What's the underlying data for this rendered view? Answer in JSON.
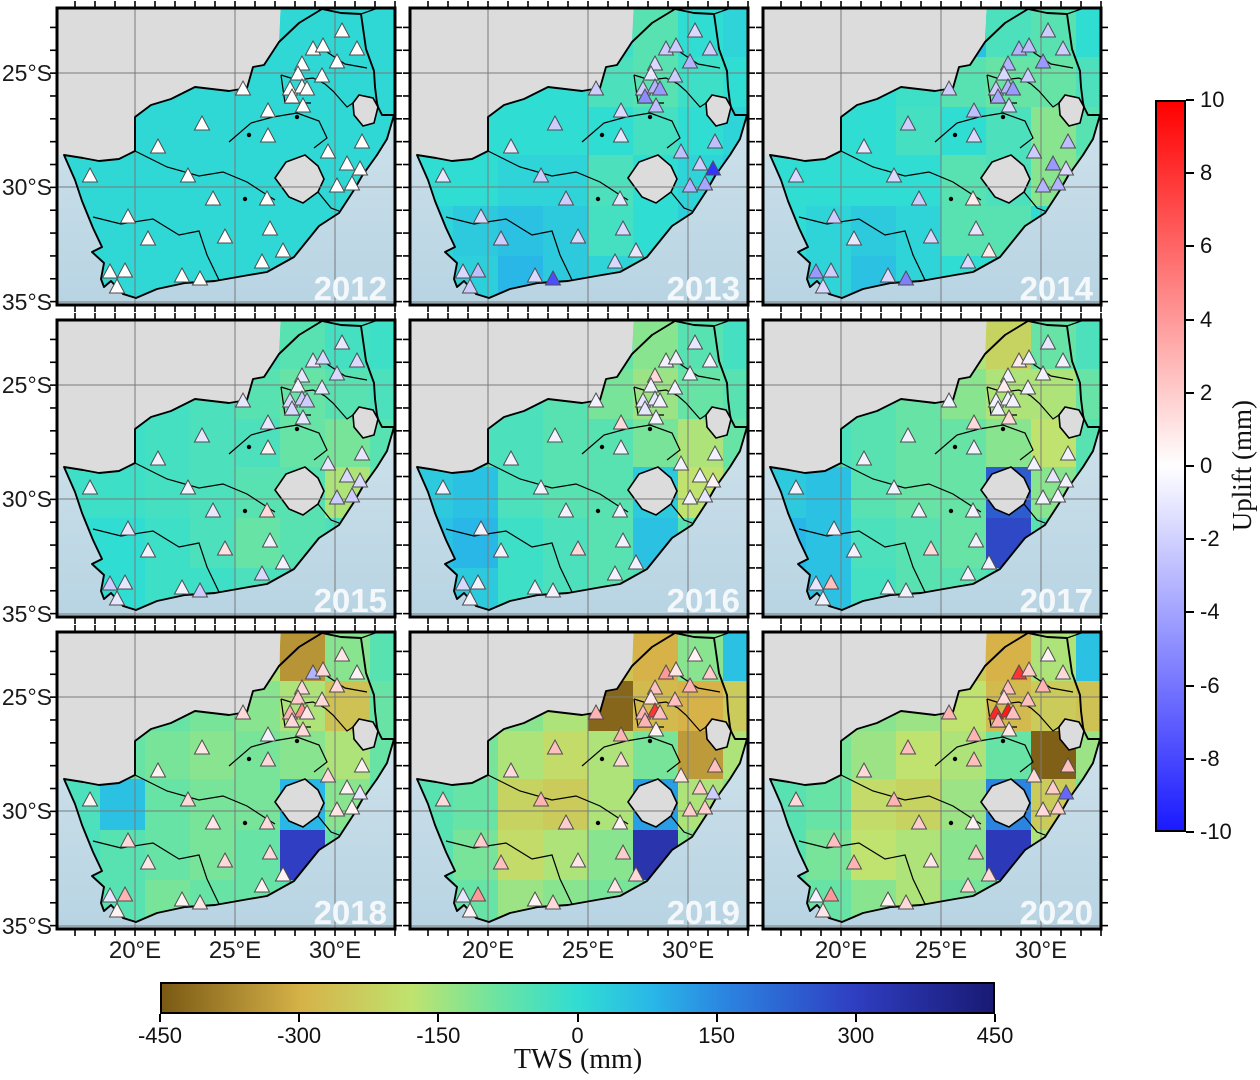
{
  "chart_data": {
    "type": "heatmap",
    "description": "3x3 grid of South Africa maps (2012-2020). Background raster = Total Water Storage anomaly (TWS, mm); triangle markers = GNSS station vertical uplift (mm).",
    "years": [
      "2012",
      "2013",
      "2014",
      "2015",
      "2016",
      "2017",
      "2018",
      "2019",
      "2020"
    ],
    "x_tick_labels": [
      "20°E",
      "25°E",
      "30°E"
    ],
    "y_tick_labels": [
      "25°S",
      "30°S",
      "35°S"
    ],
    "uplift_colorbar": {
      "label": "Uplift (mm)",
      "min": -10,
      "max": 10,
      "ticks": [
        "10",
        "8",
        "6",
        "4",
        "2",
        "0",
        "-2",
        "-4",
        "-6",
        "-8",
        "-10"
      ],
      "tick_values": [
        10,
        8,
        6,
        4,
        2,
        0,
        -2,
        -4,
        -6,
        -8,
        -10
      ],
      "color_max": "#ff0000",
      "color_mid": "#ffffff",
      "color_min": "#1a1aff"
    },
    "tws_colorbar": {
      "label": "TWS (mm)",
      "min": -450,
      "max": 450,
      "ticks": [
        "-450",
        "-300",
        "-150",
        "0",
        "150",
        "300",
        "450"
      ],
      "tick_values": [
        -450,
        -300,
        -150,
        0,
        150,
        300,
        450
      ],
      "stops": [
        [
          -450,
          "#7a5a14"
        ],
        [
          -300,
          "#d6b248"
        ],
        [
          -180,
          "#bfe36e"
        ],
        [
          -90,
          "#6ee4a0"
        ],
        [
          0,
          "#30ddd2"
        ],
        [
          80,
          "#29b7e8"
        ],
        [
          160,
          "#2b84e0"
        ],
        [
          300,
          "#2f3ec2"
        ],
        [
          450,
          "#191a74"
        ]
      ]
    },
    "map_colors": {
      "land_outside": "#dcdcdc",
      "ocean_top": "#cde1eb",
      "ocean_bottom": "#b7d3e2",
      "border": "#000000",
      "gridline": "#7a7a7a",
      "year_label": "#f5f8fa",
      "triangle_stroke": "#4d4d4d"
    },
    "stations": [
      [
        285,
        24
      ],
      [
        256,
        42
      ],
      [
        266,
        39
      ],
      [
        300,
        42
      ],
      [
        245,
        57
      ],
      [
        280,
        55
      ],
      [
        265,
        69
      ],
      [
        241,
        67
      ],
      [
        233,
        82
      ],
      [
        245,
        80
      ],
      [
        250,
        82
      ],
      [
        235,
        90
      ],
      [
        246,
        99
      ],
      [
        186,
        82
      ],
      [
        211,
        104
      ],
      [
        211,
        129
      ],
      [
        145,
        117
      ],
      [
        101,
        140
      ],
      [
        305,
        135
      ],
      [
        271,
        145
      ],
      [
        290,
        157
      ],
      [
        303,
        162
      ],
      [
        280,
        179
      ],
      [
        295,
        177
      ],
      [
        33,
        169
      ],
      [
        131,
        169
      ],
      [
        156,
        192
      ],
      [
        210,
        192
      ],
      [
        71,
        210
      ],
      [
        91,
        232
      ],
      [
        168,
        230
      ],
      [
        213,
        222
      ],
      [
        226,
        244
      ],
      [
        205,
        255
      ],
      [
        53,
        265
      ],
      [
        68,
        264
      ],
      [
        125,
        269
      ],
      [
        143,
        272
      ],
      [
        60,
        280
      ]
    ],
    "panels": [
      {
        "year": "2012",
        "tws_grid": [
          [
            10,
            10,
            10,
            10,
            10,
            10,
            10,
            10
          ],
          [
            10,
            10,
            10,
            10,
            10,
            10,
            10,
            10
          ],
          [
            10,
            10,
            10,
            10,
            10,
            10,
            10,
            10
          ],
          [
            10,
            10,
            10,
            10,
            10,
            10,
            10,
            10
          ],
          [
            10,
            10,
            10,
            10,
            10,
            10,
            10,
            10
          ],
          [
            10,
            10,
            10,
            10,
            10,
            10,
            10,
            10
          ]
        ],
        "uplift": [
          0,
          0,
          0,
          0,
          0,
          0,
          0,
          0,
          0,
          0,
          0,
          0,
          0,
          0,
          0,
          0,
          0,
          0,
          0,
          0,
          0,
          0,
          0,
          0,
          0,
          0,
          0,
          0,
          0,
          0,
          0,
          0,
          0,
          0,
          0,
          0,
          0,
          0,
          0
        ]
      },
      {
        "year": "2013",
        "tws_grid": [
          [
            0,
            0,
            0,
            0,
            -20,
            -60,
            0,
            20
          ],
          [
            0,
            0,
            0,
            0,
            -40,
            -60,
            -20,
            0
          ],
          [
            0,
            0,
            0,
            0,
            0,
            -30,
            0,
            20
          ],
          [
            0,
            0,
            20,
            20,
            -40,
            0,
            20,
            40
          ],
          [
            20,
            40,
            60,
            40,
            -30,
            0,
            30,
            0
          ],
          [
            20,
            30,
            80,
            40,
            20,
            0,
            0,
            0
          ]
        ],
        "uplift": [
          -1.5,
          -2,
          -2,
          -2,
          -1.5,
          -3,
          -2,
          -1,
          -2,
          -3,
          -4,
          -4.5,
          -2.5,
          -2,
          -1.5,
          -1,
          -2,
          -1,
          -2.5,
          -2.5,
          -2,
          -8,
          -3,
          -3.5,
          -1,
          -2,
          -2,
          -1,
          -1.5,
          -2,
          -1.5,
          -1.5,
          -1,
          -1.5,
          -1.5,
          -2.5,
          -1.5,
          -7,
          -2
        ]
      },
      {
        "year": "2014",
        "tws_grid": [
          [
            0,
            0,
            0,
            0,
            60,
            -40,
            -60,
            0
          ],
          [
            0,
            0,
            0,
            -20,
            -60,
            -80,
            -80,
            -40
          ],
          [
            0,
            0,
            0,
            -30,
            0,
            -40,
            -120,
            -60
          ],
          [
            0,
            0,
            0,
            0,
            -60,
            -40,
            -120,
            -80
          ],
          [
            0,
            20,
            40,
            20,
            -60,
            -60,
            0,
            0
          ],
          [
            0,
            20,
            60,
            20,
            0,
            0,
            0,
            0
          ]
        ],
        "uplift": [
          -2,
          -3,
          -2.5,
          -2,
          -3,
          -4,
          -2,
          -1.5,
          -2,
          -3,
          -4,
          -3.5,
          -1.5,
          -2,
          -2.5,
          -1.5,
          -2,
          -1,
          -2.5,
          -2,
          -4,
          -1.5,
          -3,
          -3,
          -1.5,
          -1.5,
          -2,
          0.8,
          -2,
          -1,
          -1.5,
          -1,
          0.8,
          -1.5,
          -4,
          -2,
          -1.5,
          -5,
          -1.5
        ]
      },
      {
        "year": "2015",
        "tws_grid": [
          [
            -20,
            -20,
            -20,
            -30,
            -40,
            -60,
            -30,
            -20
          ],
          [
            -20,
            -20,
            -30,
            -40,
            -60,
            -80,
            -60,
            -40
          ],
          [
            -20,
            -20,
            -30,
            -40,
            -40,
            -80,
            -100,
            -60
          ],
          [
            -20,
            -20,
            -30,
            -40,
            -60,
            -60,
            -160,
            -80
          ],
          [
            0,
            0,
            -20,
            -40,
            -80,
            -60,
            -40,
            -20
          ],
          [
            0,
            0,
            -20,
            -20,
            -40,
            -30,
            -20,
            -20
          ]
        ],
        "uplift": [
          -1,
          -1,
          -1.5,
          -1.5,
          -1,
          -1.5,
          -1,
          -0.5,
          -1.5,
          -2,
          -2,
          -1.5,
          -1,
          -1,
          -1,
          0.5,
          -1,
          -0.5,
          -1,
          -1,
          -1.5,
          -1.5,
          -2,
          -2,
          -0.5,
          -0.5,
          -1,
          1.5,
          -1,
          -0.5,
          1.2,
          -0.5,
          -0.5,
          -1.5,
          -2,
          -1,
          -0.5,
          -2,
          -1
        ]
      },
      {
        "year": "2016",
        "tws_grid": [
          [
            -30,
            -30,
            -40,
            -40,
            -80,
            -120,
            -60,
            -30
          ],
          [
            -30,
            -30,
            -40,
            -60,
            -100,
            -140,
            -80,
            -60
          ],
          [
            -30,
            -40,
            -40,
            -60,
            -60,
            -100,
            -160,
            -80
          ],
          [
            40,
            60,
            -40,
            -60,
            -60,
            40,
            -180,
            -100
          ],
          [
            60,
            80,
            -20,
            -40,
            -60,
            60,
            -60,
            -40
          ],
          [
            40,
            40,
            -20,
            -40,
            -60,
            -40,
            -30,
            -30
          ]
        ],
        "uplift": [
          -1,
          -0.5,
          -0.5,
          -0.5,
          1.5,
          -0.5,
          -0.5,
          -0.5,
          -1,
          -1,
          -0.5,
          -1,
          -0.5,
          -0.5,
          1.5,
          -0.5,
          -0.5,
          -0.5,
          -0.5,
          -0.5,
          -0.5,
          0.5,
          -0.5,
          -1,
          -0.5,
          -0.5,
          -0.5,
          -0.5,
          -0.5,
          -0.5,
          1.5,
          -0.5,
          -0.5,
          -0.5,
          -1.5,
          -0.5,
          -0.5,
          -0.5,
          -0.5
        ]
      },
      {
        "year": "2017",
        "tws_grid": [
          [
            -40,
            -40,
            -40,
            -60,
            -160,
            -220,
            -80,
            -40
          ],
          [
            -40,
            -40,
            -60,
            -80,
            -120,
            -160,
            -160,
            -80
          ],
          [
            -40,
            -40,
            -60,
            -80,
            -80,
            -120,
            -180,
            -60
          ],
          [
            40,
            60,
            -60,
            -80,
            -80,
            240,
            -120,
            -60
          ],
          [
            80,
            60,
            -40,
            -60,
            -80,
            280,
            -60,
            -40
          ],
          [
            40,
            60,
            -30,
            -60,
            -60,
            -40,
            -30,
            -30
          ]
        ],
        "uplift": [
          -1,
          0.8,
          -0.5,
          -0.5,
          -0.5,
          -0.5,
          -0.5,
          0.8,
          -0.5,
          -0.5,
          -0.5,
          -0.5,
          1.5,
          -0.5,
          1.5,
          -0.5,
          -0.5,
          -0.5,
          -0.5,
          -0.5,
          -1,
          -0.5,
          -0.5,
          -0.5,
          -0.5,
          -0.5,
          -0.5,
          -0.5,
          -0.5,
          -0.5,
          1.5,
          -0.5,
          -0.5,
          -0.5,
          -1,
          2.5,
          -0.5,
          -0.5,
          -0.5
        ]
      },
      {
        "year": "2018",
        "tws_grid": [
          [
            -60,
            -60,
            -60,
            -80,
            -160,
            -350,
            -120,
            -60
          ],
          [
            -60,
            -60,
            -80,
            -100,
            -120,
            -160,
            -260,
            -80
          ],
          [
            -60,
            -80,
            -100,
            -120,
            -100,
            -120,
            -160,
            -80
          ],
          [
            -40,
            60,
            -80,
            -100,
            -100,
            80,
            -120,
            -60
          ],
          [
            -40,
            -60,
            -80,
            -100,
            -80,
            300,
            -80,
            -60
          ],
          [
            -40,
            -60,
            -100,
            -80,
            -80,
            -60,
            -40,
            -40
          ]
        ],
        "uplift": [
          1,
          -3,
          1.5,
          0.5,
          1.5,
          1.5,
          1.5,
          2,
          3,
          4.5,
          1,
          1.5,
          1.5,
          1.5,
          -0.5,
          1.5,
          1,
          0.5,
          0.5,
          1.5,
          0.5,
          -1,
          1,
          0.5,
          0.5,
          1.5,
          1,
          1.5,
          1.5,
          1,
          1.5,
          1.5,
          0.5,
          0.5,
          -1,
          3,
          0.5,
          1,
          0.5
        ]
      },
      {
        "year": "2019",
        "tws_grid": [
          [
            -80,
            -80,
            -100,
            -140,
            -260,
            -300,
            -120,
            60
          ],
          [
            -80,
            -100,
            -120,
            -160,
            -430,
            -280,
            -300,
            -240
          ],
          [
            -60,
            -100,
            -160,
            -200,
            -160,
            -100,
            -340,
            -160
          ],
          [
            -60,
            -80,
            -220,
            -240,
            -160,
            120,
            -160,
            -120
          ],
          [
            -60,
            -100,
            -200,
            -160,
            -120,
            340,
            -120,
            -80
          ],
          [
            -60,
            -80,
            -140,
            -120,
            -100,
            -80,
            -60,
            -60
          ]
        ],
        "uplift": [
          0.5,
          4,
          1,
          2,
          2.5,
          3,
          2.5,
          1,
          3,
          8,
          2.5,
          3,
          0.5,
          3,
          3,
          1.5,
          2.5,
          1.5,
          2.5,
          1,
          2,
          -2,
          2,
          2,
          1.5,
          3,
          2,
          0.5,
          2,
          2.5,
          1,
          2,
          1.5,
          1,
          -1,
          4,
          0.5,
          1.5,
          0.5
        ]
      },
      {
        "year": "2020",
        "tws_grid": [
          [
            -80,
            -80,
            -100,
            -120,
            -240,
            -300,
            -160,
            60
          ],
          [
            -80,
            -100,
            -120,
            -140,
            -180,
            -280,
            -240,
            -260
          ],
          [
            -60,
            -100,
            -140,
            -180,
            -160,
            -80,
            -440,
            -140
          ],
          [
            -60,
            -80,
            -200,
            -220,
            -140,
            160,
            -240,
            -100
          ],
          [
            -60,
            -100,
            -180,
            -160,
            -120,
            320,
            -160,
            -80
          ],
          [
            -60,
            -80,
            -120,
            -160,
            -100,
            -80,
            -60,
            -60
          ]
        ],
        "uplift": [
          0.5,
          8,
          2,
          1.5,
          2.5,
          3,
          2.5,
          1.5,
          8.5,
          9,
          2.5,
          3,
          1,
          3,
          3,
          2.5,
          2.5,
          1.5,
          2.5,
          1.5,
          2,
          -6,
          1.5,
          2,
          1.5,
          3,
          2,
          0.5,
          2.5,
          3,
          1,
          2,
          1.5,
          1.5,
          -0.5,
          4,
          0.5,
          1.5,
          1
        ]
      }
    ]
  }
}
